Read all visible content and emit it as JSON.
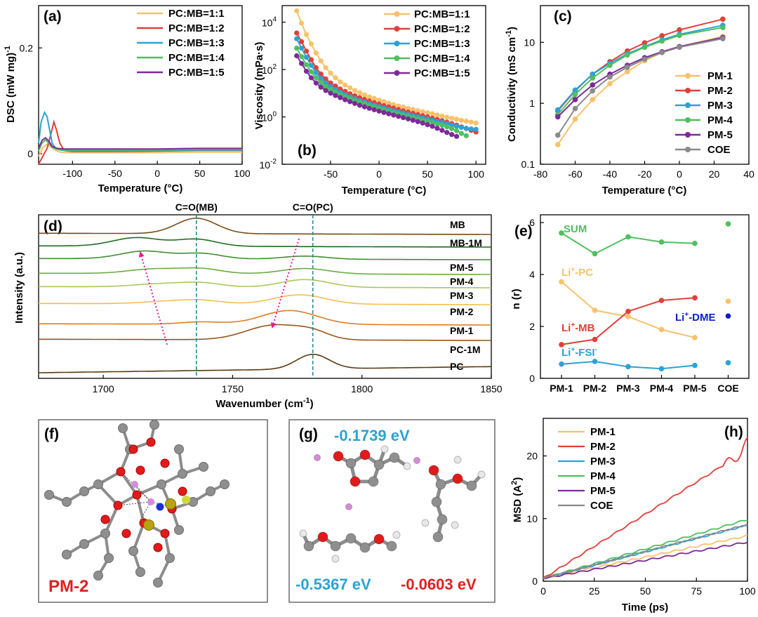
{
  "colors": {
    "PC:MB=1:1": "#f7c26b",
    "PC:MB=1:2": "#e0403a",
    "PC:MB=1:3": "#2aa3d6",
    "PC:MB=1:4": "#4fbf5f",
    "PC:MB=1:5": "#7d2a99",
    "PM-1": "#f7c26b",
    "PM-2": "#e0403a",
    "PM-3": "#2aa3d6",
    "PM-4": "#4fbf5f",
    "PM-5": "#7d2a99",
    "COE": "#8a8a8a"
  },
  "chart_data": [
    {
      "panel": "(a)",
      "type": "line",
      "xlabel": "Temperature (°C)",
      "ylabel": "DSC (mW mg)",
      "ylabel_sup": "-1",
      "xlim": [
        -140,
        100
      ],
      "ylim": [
        -0.02,
        0.28
      ],
      "xticks": [
        "-100",
        "-50",
        "0",
        "50",
        "100"
      ],
      "yticks": [
        "0",
        "0.2"
      ],
      "series": [
        {
          "name": "PC:MB=1:1",
          "x": [
            -140,
            -135,
            -130,
            -125,
            -120,
            -115,
            -110,
            -100,
            -50,
            0,
            50,
            100
          ],
          "y": [
            -0.005,
            0.012,
            0.018,
            0.012,
            0.006,
            0.003,
            0.002,
            0.002,
            0.002,
            0.002,
            0.003,
            0.003
          ]
        },
        {
          "name": "PC:MB=1:2",
          "x": [
            -140,
            -135,
            -130,
            -125,
            -122,
            -119,
            -115,
            -110,
            -100,
            -50,
            0,
            50,
            100
          ],
          "y": [
            -0.02,
            -0.005,
            0.01,
            0.04,
            0.06,
            0.045,
            0.02,
            0.006,
            0.004,
            0.004,
            0.005,
            0.006,
            0.006
          ]
        },
        {
          "name": "PC:MB=1:3",
          "x": [
            -140,
            -137,
            -133,
            -130,
            -127,
            -124,
            -120,
            -115,
            -110,
            -100,
            -50,
            0,
            50,
            100
          ],
          "y": [
            0.02,
            0.06,
            0.078,
            0.07,
            0.045,
            0.02,
            0.01,
            0.007,
            0.006,
            0.005,
            0.005,
            0.006,
            0.007,
            0.007
          ]
        },
        {
          "name": "PC:MB=1:4",
          "x": [
            -140,
            -136,
            -132,
            -128,
            -124,
            -118,
            -110,
            -100,
            -50,
            0,
            50,
            100
          ],
          "y": [
            0.005,
            0.02,
            0.026,
            0.02,
            0.012,
            0.008,
            0.007,
            0.007,
            0.007,
            0.007,
            0.008,
            0.008
          ]
        },
        {
          "name": "PC:MB=1:5",
          "x": [
            -140,
            -136,
            -132,
            -128,
            -124,
            -118,
            -110,
            -100,
            -50,
            0,
            50,
            100
          ],
          "y": [
            0.01,
            0.025,
            0.03,
            0.024,
            0.014,
            0.01,
            0.009,
            0.009,
            0.009,
            0.009,
            0.01,
            0.01
          ]
        }
      ]
    },
    {
      "panel": "(b)",
      "type": "line",
      "xlabel": "Temperature (°C)",
      "ylabel": "Viscosity (mPa·s)",
      "yscale": "log",
      "xlim": [
        -100,
        110
      ],
      "ylim": [
        0.01,
        50000
      ],
      "xticks": [
        -50,
        0,
        50,
        100
      ],
      "yticks": [
        {
          "base": "10",
          "exp": "-2"
        },
        {
          "base": "10",
          "exp": "0"
        },
        {
          "base": "10",
          "exp": "2"
        },
        {
          "base": "10",
          "exp": "4"
        }
      ],
      "x": [
        -85,
        -80,
        -75,
        -70,
        -65,
        -60,
        -55,
        -50,
        -45,
        -40,
        -35,
        -30,
        -25,
        -20,
        -15,
        -10,
        -5,
        0,
        5,
        10,
        15,
        20,
        25,
        30,
        35,
        40,
        45,
        50,
        55,
        60,
        65,
        70,
        75,
        80,
        85,
        90,
        95,
        100
      ],
      "series": [
        {
          "name": "PC:MB=1:1",
          "values": [
            30000,
            9000,
            3000,
            1200,
            500,
            230,
            120,
            70,
            45,
            30,
            22,
            17,
            13,
            10.5,
            8.5,
            7,
            6,
            5.1,
            4.4,
            3.8,
            3.3,
            2.9,
            2.6,
            2.3,
            2.05,
            1.85,
            1.65,
            1.5,
            1.35,
            1.2,
            1.08,
            0.97,
            0.88,
            0.8,
            0.72,
            0.66,
            0.6,
            0.55
          ]
        },
        {
          "name": "PC:MB=1:2",
          "values": [
            3500,
            1500,
            600,
            260,
            120,
            65,
            40,
            27,
            20,
            15,
            12,
            9.5,
            7.8,
            6.5,
            5.5,
            4.7,
            4,
            3.5,
            3,
            2.65,
            2.35,
            2.05,
            1.8,
            1.6,
            1.42,
            1.26,
            1.12,
            1,
            0.88,
            0.78,
            0.69,
            0.6,
            0.52,
            0.45,
            0.38,
            0.32,
            0.27,
            0.23
          ]
        },
        {
          "name": "PC:MB=1:3",
          "values": [
            2000,
            800,
            330,
            150,
            75,
            42,
            27,
            19,
            14,
            11,
            8.7,
            7,
            5.8,
            4.9,
            4.2,
            3.6,
            3.1,
            2.7,
            2.35,
            2.05,
            1.8,
            1.6,
            1.42,
            1.27,
            1.13,
            1.01,
            0.9,
            0.81,
            0.72,
            0.64,
            0.57,
            0.51,
            0.45,
            0.4,
            0.36,
            0.33,
            0.31,
            0.3
          ]
        },
        {
          "name": "PC:MB=1:4",
          "values": [
            800,
            350,
            160,
            80,
            45,
            28,
            19,
            14,
            11,
            8.7,
            7,
            5.8,
            4.8,
            4.1,
            3.5,
            3,
            2.6,
            2.25,
            1.95,
            1.7,
            1.5,
            1.32,
            1.17,
            1.04,
            0.92,
            0.82,
            0.73,
            0.65,
            0.57,
            0.5,
            0.44,
            0.38,
            0.32,
            0.26,
            0.2,
            0.16,
            null,
            null
          ]
        },
        {
          "name": "PC:MB=1:5",
          "values": [
            380,
            180,
            85,
            45,
            27,
            18,
            13,
            10,
            8,
            6.5,
            5.3,
            4.4,
            3.7,
            3.1,
            2.65,
            2.3,
            2,
            1.75,
            1.53,
            1.35,
            1.19,
            1.05,
            0.93,
            0.82,
            0.72,
            0.63,
            0.55,
            0.47,
            0.4,
            0.33,
            0.27,
            0.22,
            0.18,
            0.15,
            null,
            null,
            null,
            null
          ]
        }
      ]
    },
    {
      "panel": "(c)",
      "type": "line",
      "xlabel": "Temperature (°C)",
      "ylabel": "Conductivity (mS cm",
      "ylabel_sup": "-1",
      "ylabel_end": ")",
      "yscale": "log",
      "xlim": [
        -80,
        40
      ],
      "ylim": [
        0.1,
        40
      ],
      "xticks": [
        -80,
        -60,
        -40,
        -20,
        0,
        20,
        40
      ],
      "yticks": [
        "0.1",
        "1",
        "10"
      ],
      "x": [
        -70,
        -60,
        -50,
        -40,
        -30,
        -20,
        -10,
        0,
        25
      ],
      "series": [
        {
          "name": "PM-1",
          "values": [
            0.21,
            0.55,
            1.15,
            2.1,
            3.3,
            5.0,
            6.8,
            8.5,
            12.5
          ]
        },
        {
          "name": "PM-2",
          "values": [
            0.75,
            1.6,
            3.0,
            4.8,
            7.2,
            9.8,
            12.8,
            16,
            24
          ]
        },
        {
          "name": "PM-3",
          "values": [
            0.78,
            1.65,
            3.0,
            4.5,
            6.5,
            8.5,
            11,
            13.5,
            19
          ]
        },
        {
          "name": "PM-4",
          "values": [
            0.65,
            1.4,
            2.6,
            4.2,
            6.2,
            8.3,
            10.5,
            13,
            17.5
          ]
        },
        {
          "name": "PM-5",
          "values": [
            0.6,
            1.15,
            2.0,
            3.0,
            4.2,
            5.6,
            7.0,
            8.5,
            12
          ]
        },
        {
          "name": "COE",
          "values": [
            0.3,
            0.82,
            1.6,
            2.7,
            3.9,
            5.3,
            6.8,
            8.3,
            11.5
          ]
        }
      ]
    },
    {
      "panel": "(d)",
      "type": "line",
      "xlabel": "Wavenumber (cm",
      "xlabel_sup": "-1",
      "xlabel_end": ")",
      "ylabel": "Intensity (a.u.)",
      "xlim": [
        1675,
        1850
      ],
      "xticks": [
        1700,
        1750,
        1800,
        1850
      ],
      "reference_lines": [
        {
          "label": "C=O(MB)",
          "x": 1736
        },
        {
          "label": "C=O(PC)",
          "x": 1781
        }
      ],
      "series": [
        {
          "name": "MB",
          "offset": 8.2,
          "peaks": [
            [
              1736,
              1.0,
              11
            ]
          ]
        },
        {
          "name": "MB-1M",
          "offset": 7.0,
          "peaks": [
            [
              1713,
              0.55,
              13
            ],
            [
              1736,
              0.45,
              11
            ]
          ]
        },
        {
          "name": "PM-5",
          "offset": 6.05,
          "peaks": [
            [
              1716,
              0.5,
              13
            ],
            [
              1738,
              0.35,
              11
            ],
            [
              1778,
              0.2,
              12
            ]
          ]
        },
        {
          "name": "PM-4",
          "offset": 5.2,
          "peaks": [
            [
              1720,
              0.3,
              14
            ],
            [
              1738,
              0.3,
              11
            ],
            [
              1778,
              0.35,
              13
            ]
          ]
        },
        {
          "name": "PM-3",
          "offset": 4.5,
          "peaks": [
            [
              1722,
              0.2,
              14
            ],
            [
              1738,
              0.25,
              11
            ],
            [
              1778,
              0.5,
              13
            ]
          ]
        },
        {
          "name": "PM-2",
          "offset": 3.75,
          "peaks": [
            [
              1725,
              0.15,
              14
            ],
            [
              1738,
              0.2,
              11
            ],
            [
              1776,
              0.6,
              14
            ]
          ]
        },
        {
          "name": "PM-1",
          "offset": 2.85,
          "peaks": [
            [
              1738,
              0.15,
              11
            ],
            [
              1772,
              0.9,
              15
            ]
          ]
        },
        {
          "name": "PC-1M",
          "offset": 1.75,
          "peaks": [
            [
              1766,
              0.95,
              15
            ],
            [
              1781,
              0.4,
              9
            ]
          ]
        },
        {
          "name": "PC",
          "offset": 0.0,
          "peaks": [
            [
              1781,
              0.95,
              9
            ]
          ]
        }
      ]
    },
    {
      "panel": "(e)",
      "type": "line",
      "ylabel": "n (r)",
      "categories": [
        "PM-1",
        "PM-2",
        "PM-3",
        "PM-4",
        "PM-5",
        "COE"
      ],
      "ylim": [
        0,
        6.3
      ],
      "yticks": [
        0,
        2,
        4,
        6
      ],
      "series": [
        {
          "name": "SUM",
          "color": "#4fbf5f",
          "values": [
            5.6,
            4.8,
            5.45,
            5.25,
            5.2,
            5.95
          ]
        },
        {
          "name": "Li+-PC",
          "color": "#f7c26b",
          "values": [
            3.72,
            2.62,
            2.38,
            1.88,
            1.57,
            2.97
          ]
        },
        {
          "name": "Li+-MB",
          "color": "#e0403a",
          "values": [
            1.3,
            1.5,
            2.58,
            3.0,
            3.1,
            null
          ]
        },
        {
          "name": "Li+-FSI-",
          "color": "#2aa3d6",
          "values": [
            0.55,
            0.65,
            0.45,
            0.37,
            0.5,
            0.6
          ]
        },
        {
          "name": "Li+-DME",
          "color": "#0b1fc7",
          "values": [
            null,
            null,
            null,
            null,
            null,
            2.4
          ]
        }
      ]
    },
    {
      "panel": "(h)",
      "type": "line",
      "xlabel": "Time (ps)",
      "ylabel": "MSD (A",
      "ylabel_sup": "2",
      "ylabel_end": ")",
      "xlim": [
        0,
        100
      ],
      "ylim": [
        0,
        26
      ],
      "xticks": [
        0,
        25,
        50,
        75,
        100
      ],
      "yticks": [
        0,
        10,
        20
      ],
      "series": [
        {
          "name": "PM-1",
          "slope": 0.068
        },
        {
          "name": "PM-2",
          "slope": 0.205
        },
        {
          "name": "PM-3",
          "slope": 0.085
        },
        {
          "name": "PM-4",
          "slope": 0.094
        },
        {
          "name": "PM-5",
          "slope": 0.058
        },
        {
          "name": "COE",
          "slope": 0.086
        }
      ]
    }
  ],
  "panel_e_labels": {
    "sum": "SUM",
    "li": "Li",
    "sup": "+",
    "pc": "-PC",
    "mb": "-MB",
    "fsi": "-FSI",
    "fsi_sup": "-",
    "dme": "-DME"
  },
  "panel_f": {
    "label": "(f)",
    "caption": "PM-2"
  },
  "panel_g": {
    "label": "(g)",
    "e1": "-0.1739 eV",
    "e2": "-0.5367 eV",
    "e3": "-0.0603 eV"
  },
  "panel_labels": {
    "a": "(a)",
    "b": "(b)",
    "c": "(c)",
    "d": "(d)",
    "e": "(e)",
    "h": "(h)"
  }
}
